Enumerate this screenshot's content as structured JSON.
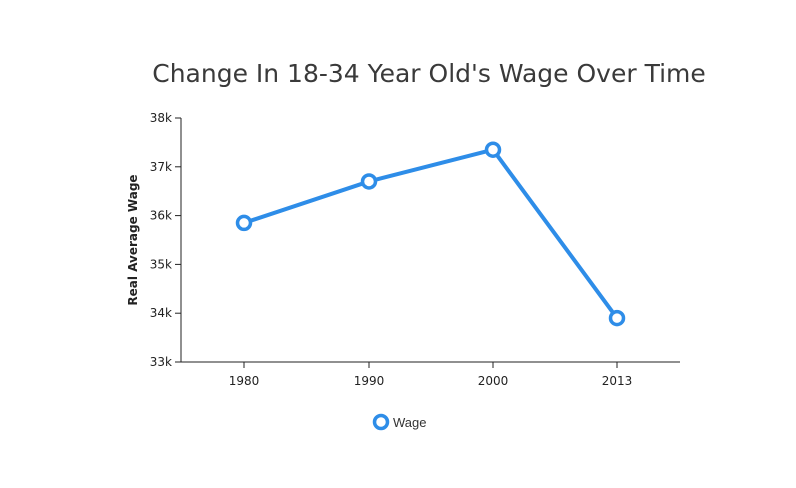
{
  "chart_data": {
    "type": "line",
    "title": "Change In 18-34 Year Old's Wage Over Time",
    "xlabel": "",
    "ylabel": "Real Average Wage",
    "categories": [
      "1980",
      "1990",
      "2000",
      "2013"
    ],
    "y_ticks": [
      33000,
      34000,
      35000,
      36000,
      37000,
      38000
    ],
    "y_tick_labels": [
      "33k",
      "34k",
      "35k",
      "36k",
      "37k",
      "38k"
    ],
    "ylim": [
      33000,
      38000
    ],
    "series": [
      {
        "name": "Wage",
        "color": "#2e8de8",
        "values": [
          35850,
          36700,
          37350,
          33900
        ]
      }
    ],
    "legend_position": "bottom-center",
    "grid": false
  }
}
